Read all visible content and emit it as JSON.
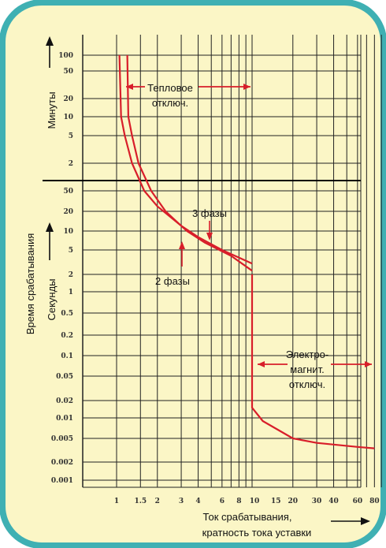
{
  "colors": {
    "frame": "#3fb0b3",
    "background": "#fbf6c6",
    "grid": "#222222",
    "curve": "#d81e2a",
    "text": "#111111"
  },
  "labels": {
    "y_main": "Время срабатывания",
    "y_minutes": "Минуты",
    "y_seconds": "Секунды",
    "x_line1": "Ток срабатывания,",
    "x_line2": "кратность тока уставки"
  },
  "annotations": {
    "thermal": [
      "Тепловое",
      "отключ."
    ],
    "three_phase": "3 фазы",
    "two_phase": "2 фазы",
    "electromagnetic": [
      "Электро-",
      "магнит.",
      "отключ."
    ]
  },
  "chart_data": {
    "type": "line",
    "title": "",
    "xlabel": "Ток срабатывания, кратность тока уставки",
    "ylabel": "Время срабатывания",
    "x_scale": "log",
    "x_ticks": [
      "1",
      "1.5",
      "2",
      "3",
      "4",
      "6",
      "8",
      "10",
      "15",
      "20",
      "30",
      "40",
      "60",
      "80"
    ],
    "y_ticks_minutes": [
      "100",
      "50",
      "20",
      "10",
      "5",
      "2"
    ],
    "y_ticks_seconds": [
      "50",
      "20",
      "10",
      "5",
      "2",
      "1",
      "0.5",
      "0.2",
      "0.1",
      "0.05",
      "0.02",
      "0.01",
      "0.005",
      "0.002",
      "0.001"
    ],
    "series": [
      {
        "name": "3 фазы",
        "points": [
          [
            1.05,
            "100 min"
          ],
          [
            1.08,
            "10 min"
          ],
          [
            1.15,
            "5 min"
          ],
          [
            1.3,
            "2 min"
          ],
          [
            1.6,
            "50 s"
          ],
          [
            2,
            "25 s"
          ],
          [
            3,
            "12 s"
          ],
          [
            4,
            "8 s"
          ],
          [
            6,
            "5 s"
          ],
          [
            10,
            "3 s"
          ]
        ]
      },
      {
        "name": "2 фазы",
        "points": [
          [
            1.2,
            "100 min"
          ],
          [
            1.22,
            "10 min"
          ],
          [
            1.3,
            "5 min"
          ],
          [
            1.45,
            "2 min"
          ],
          [
            1.8,
            "50 s"
          ],
          [
            2.3,
            "20 s"
          ],
          [
            3.3,
            "10 s"
          ],
          [
            4.5,
            "6.5 s"
          ],
          [
            7,
            "4 s"
          ],
          [
            10,
            "2.3 s"
          ]
        ]
      },
      {
        "name": "Электромагнитное отключение",
        "points": [
          [
            10,
            "2 s"
          ],
          [
            10,
            "0.015 s"
          ],
          [
            12,
            "0.009 s"
          ],
          [
            20,
            "0.005 s"
          ],
          [
            30,
            "0.0042 s"
          ],
          [
            60,
            "0.0036 s"
          ],
          [
            80,
            "0.0034 s"
          ]
        ]
      }
    ],
    "grid": true
  }
}
